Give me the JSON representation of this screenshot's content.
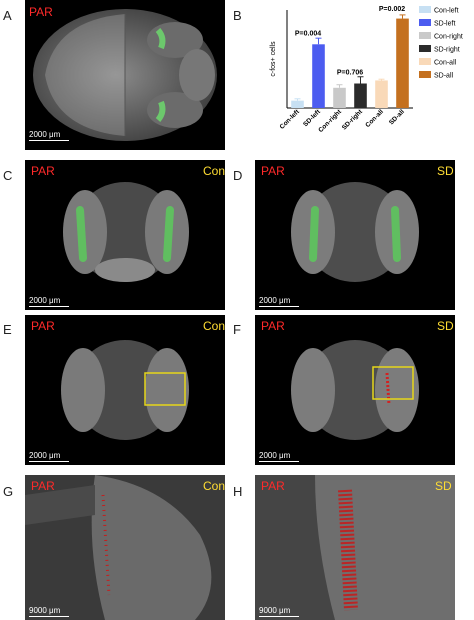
{
  "panels": {
    "A": {
      "letter": "A",
      "region": "PAR",
      "scale": "2000 μm"
    },
    "B": {
      "letter": "B"
    },
    "C": {
      "letter": "C",
      "region": "PAR",
      "group": "Con",
      "scale": "2000 μm"
    },
    "D": {
      "letter": "D",
      "region": "PAR",
      "group": "SD",
      "scale": "2000 μm"
    },
    "E": {
      "letter": "E",
      "region": "PAR",
      "group": "Con",
      "scale": "2000 μm"
    },
    "F": {
      "letter": "F",
      "region": "PAR",
      "group": "SD",
      "scale": "2000 μm"
    },
    "G": {
      "letter": "G",
      "region": "PAR",
      "group": "Con",
      "scale": "9000 μm"
    },
    "H": {
      "letter": "H",
      "region": "PAR",
      "group": "SD",
      "scale": "9000 μm"
    }
  },
  "chart_data": {
    "type": "bar",
    "ylabel": "c-fos+ cells",
    "categories": [
      "Con-left",
      "SD-left",
      "Con-right",
      "SD-right",
      "Con-all",
      "SD-all"
    ],
    "values": [
      60,
      520,
      165,
      200,
      225,
      730
    ],
    "errors": [
      15,
      50,
      25,
      55,
      10,
      30
    ],
    "colors": [
      "#c7e0f3",
      "#4c5cf0",
      "#c9c9c9",
      "#2b2b2b",
      "#f9d9b8",
      "#c4701f"
    ],
    "ylim": [
      0,
      800
    ],
    "annotations": [
      {
        "text": "P=0.004",
        "between": [
          0,
          1
        ],
        "y": 590
      },
      {
        "text": "P=0.706",
        "between": [
          2,
          3
        ],
        "y": 275
      },
      {
        "text": "P=0.002",
        "between": [
          4,
          5
        ],
        "y": 790
      }
    ],
    "legend": {
      "placement": "right",
      "entries": [
        "Con-left",
        "SD-left",
        "Con-right",
        "SD-right",
        "Con-all",
        "SD-all"
      ]
    }
  }
}
